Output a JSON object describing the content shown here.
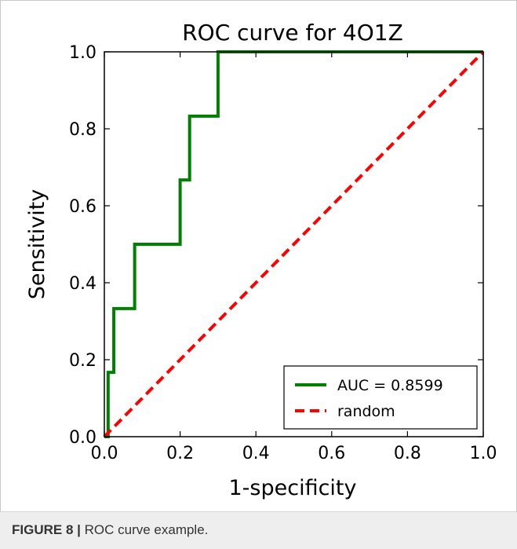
{
  "colors": {
    "roc": "#008000",
    "random": "#ff0000",
    "frame": "#000000"
  },
  "caption": {
    "figure_label": "FIGURE 8 |",
    "text": " ROC curve example."
  },
  "chart_data": {
    "type": "line",
    "title": "ROC curve for 4O1Z",
    "xlabel": "1-specificity",
    "ylabel": "Sensitivity",
    "xlim": [
      0.0,
      1.0
    ],
    "ylim": [
      0.0,
      1.0
    ],
    "xticks": [
      "0.0",
      "0.2",
      "0.4",
      "0.6",
      "0.8",
      "1.0"
    ],
    "yticks": [
      "0.0",
      "0.2",
      "0.4",
      "0.6",
      "0.8",
      "1.0"
    ],
    "grid": false,
    "legend_position": "lower-right",
    "series": [
      {
        "name": "AUC = 0.8599",
        "style": "solid",
        "color": "#008000",
        "x": [
          0.0,
          0.01,
          0.01,
          0.025,
          0.025,
          0.08,
          0.08,
          0.2,
          0.2,
          0.225,
          0.225,
          0.3,
          0.3,
          1.0
        ],
        "y": [
          0.0,
          0.0,
          0.167,
          0.167,
          0.333,
          0.333,
          0.5,
          0.5,
          0.667,
          0.667,
          0.833,
          0.833,
          1.0,
          1.0
        ]
      },
      {
        "name": "random",
        "style": "dashed",
        "color": "#ff0000",
        "x": [
          0.0,
          1.0
        ],
        "y": [
          0.0,
          1.0
        ]
      }
    ]
  }
}
